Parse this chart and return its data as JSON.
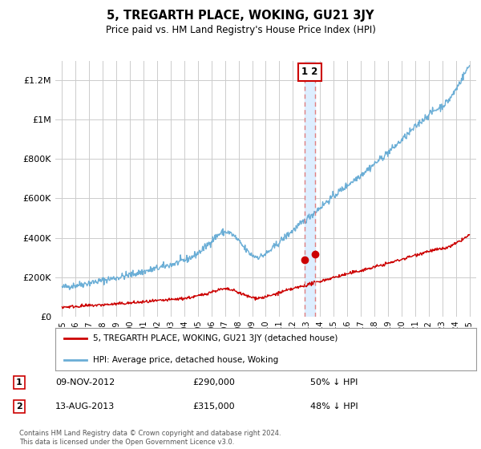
{
  "title": "5, TREGARTH PLACE, WOKING, GU21 3JY",
  "subtitle": "Price paid vs. HM Land Registry's House Price Index (HPI)",
  "hpi_label": "HPI: Average price, detached house, Woking",
  "property_label": "5, TREGARTH PLACE, WOKING, GU21 3JY (detached house)",
  "transaction1_date": "09-NOV-2012",
  "transaction1_price": "£290,000",
  "transaction1_hpi": "50% ↓ HPI",
  "transaction2_date": "13-AUG-2013",
  "transaction2_price": "£315,000",
  "transaction2_hpi": "48% ↓ HPI",
  "hpi_color": "#6baed6",
  "property_color": "#cc0000",
  "vline_color": "#e08080",
  "shade_color": "#ddeeff",
  "annotation_box_color": "#cc0000",
  "background_color": "#ffffff",
  "grid_color": "#cccccc",
  "ylim": [
    0,
    1300000
  ],
  "yticks": [
    0,
    200000,
    400000,
    600000,
    800000,
    1000000,
    1200000
  ],
  "ytick_labels": [
    "£0",
    "£200K",
    "£400K",
    "£600K",
    "£800K",
    "£1M",
    "£1.2M"
  ],
  "footer": "Contains HM Land Registry data © Crown copyright and database right 2024.\nThis data is licensed under the Open Government Licence v3.0.",
  "transaction1_x": 2012.86,
  "transaction2_x": 2013.62,
  "transaction1_y": 290000,
  "transaction2_y": 315000,
  "xlim_left": 1994.5,
  "xlim_right": 2025.5
}
